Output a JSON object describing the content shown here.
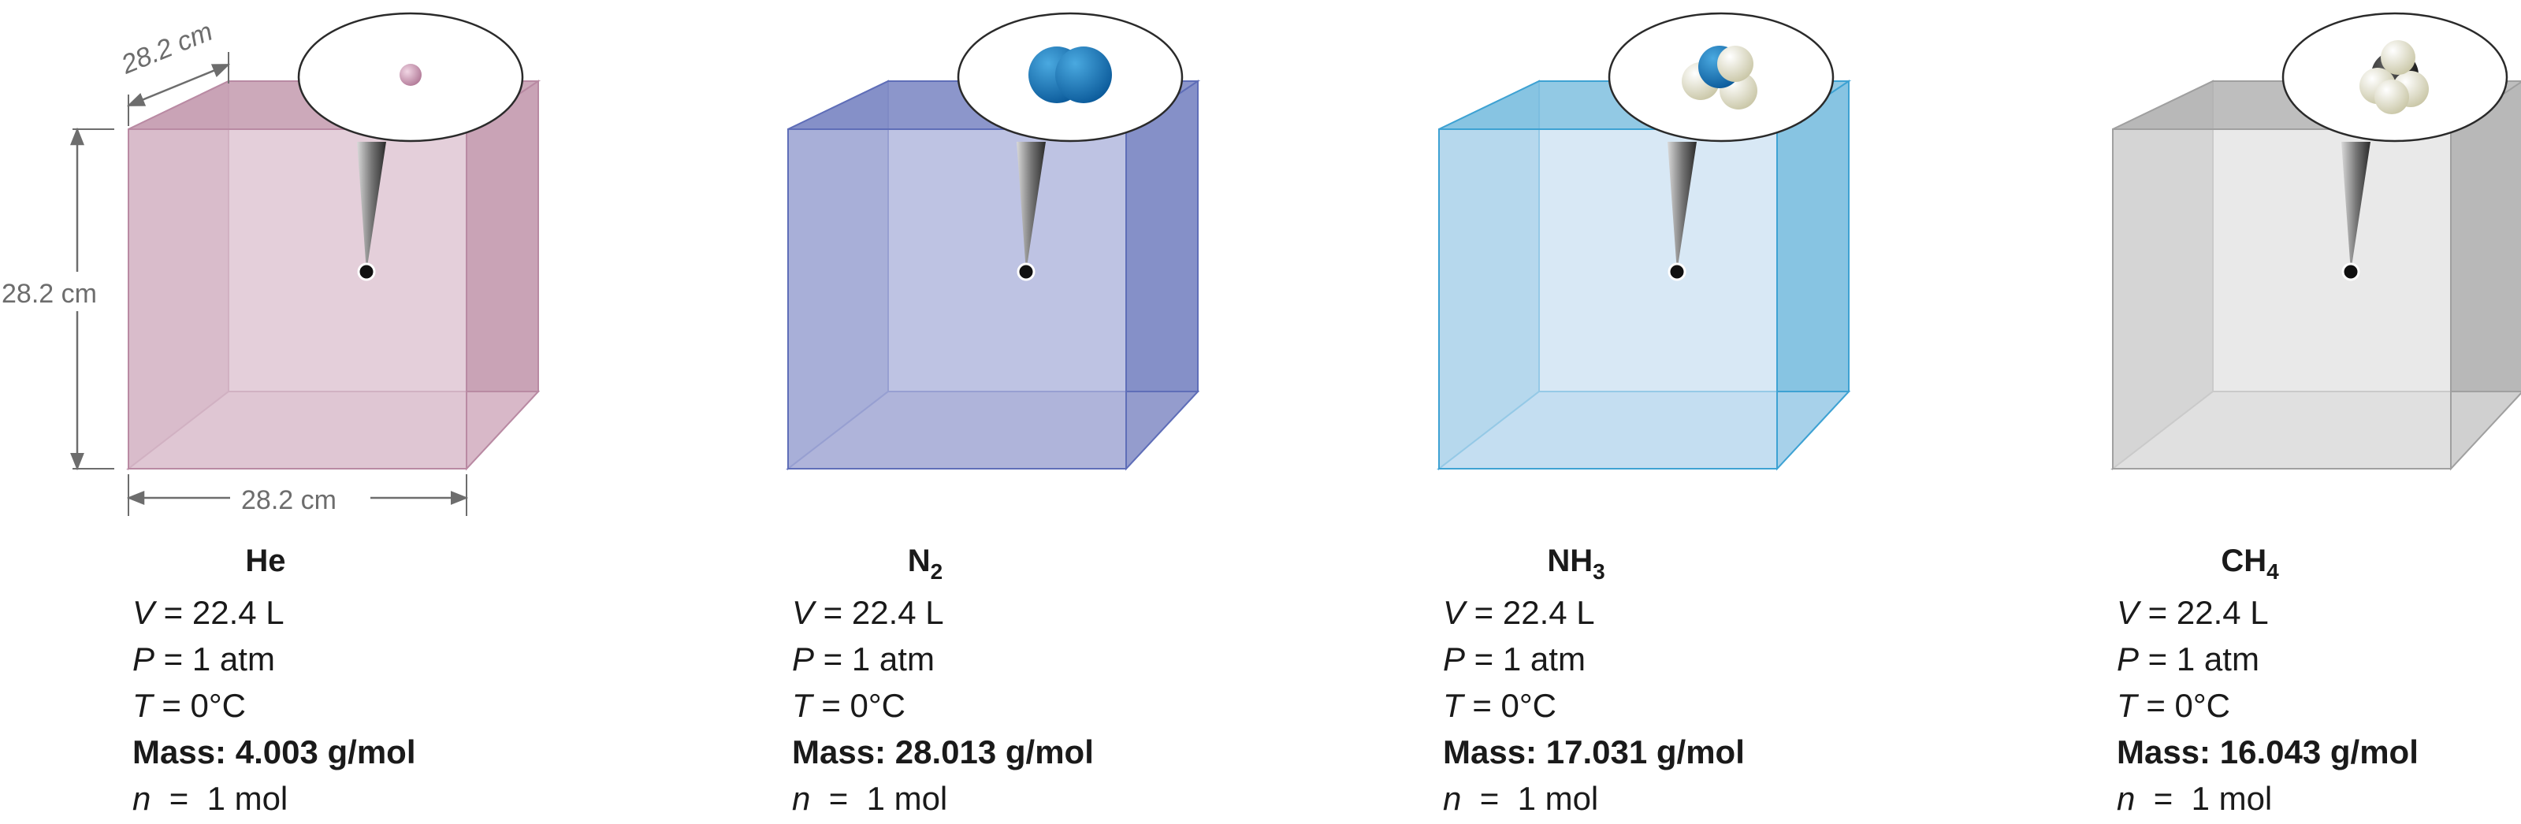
{
  "dimensions": {
    "width": "28.2 cm",
    "height": "28.2 cm",
    "depth": "28.2 cm"
  },
  "containers": [
    {
      "formula": "He",
      "subscript": "",
      "volume": "22.4 L",
      "pressure": "1 atm",
      "temperature": "0°C",
      "mass": "4.003 g/mol",
      "moles": "1 mol",
      "molecule_icon": "helium-atom-icon",
      "colors": {
        "front": "#e6d2dc",
        "side": "#c9a3b6",
        "back": "#e2cdd7",
        "bottom": "#d8b8c8",
        "edge": "#b98aa3"
      }
    },
    {
      "formula": "N",
      "subscript": "2",
      "volume": "22.4 L",
      "pressure": "1 atm",
      "temperature": "0°C",
      "mass": "28.013 g/mol",
      "moles": "1 mol",
      "molecule_icon": "nitrogen-molecule-icon",
      "colors": {
        "front": "#c4c9e6",
        "side": "#8590c8",
        "back": "#b7bde0",
        "bottom": "#949ccd",
        "edge": "#5f6eb8"
      }
    },
    {
      "formula": "NH",
      "subscript": "3",
      "volume": "22.4 L",
      "pressure": "1 atm",
      "temperature": "0°C",
      "mass": "17.031 g/mol",
      "moles": "1 mol",
      "molecule_icon": "ammonia-molecule-icon",
      "colors": {
        "front": "#ddeaf6",
        "side": "#87c4e2",
        "back": "#d2e6f3",
        "bottom": "#a7d1ea",
        "edge": "#3ea2d3"
      }
    },
    {
      "formula": "CH",
      "subscript": "4",
      "volume": "22.4 L",
      "pressure": "1 atm",
      "temperature": "0°C",
      "mass": "16.043 g/mol",
      "moles": "1 mol",
      "molecule_icon": "methane-molecule-icon",
      "colors": {
        "front": "#ececec",
        "side": "#b8b8b8",
        "back": "#e4e4e4",
        "bottom": "#d0d0d0",
        "edge": "#a0a0a0"
      }
    }
  ],
  "labels": {
    "volume_symbol": "V",
    "pressure_symbol": "P",
    "temperature_symbol": "T",
    "mass_prefix": "Mass:",
    "moles_symbol": "n"
  }
}
